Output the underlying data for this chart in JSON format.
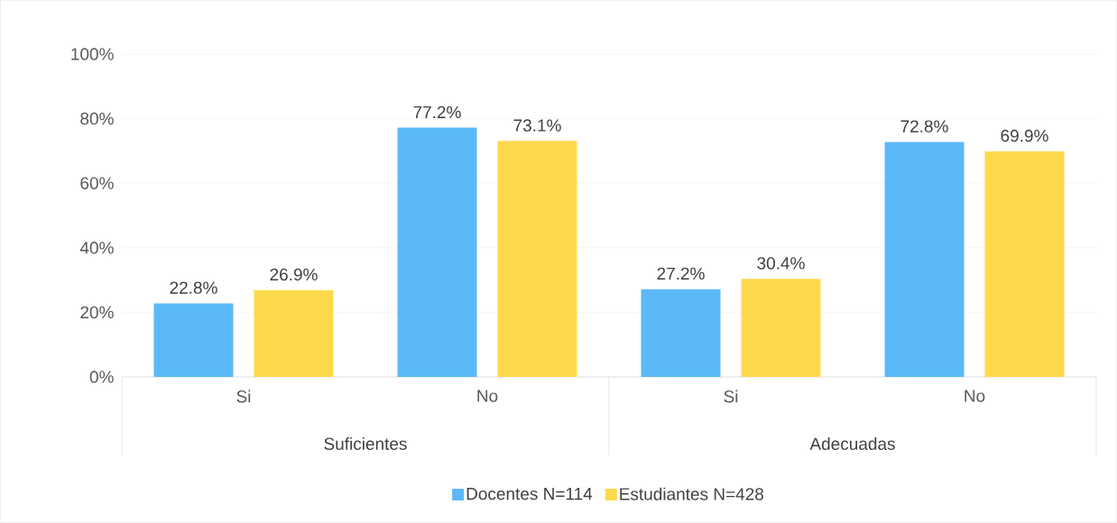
{
  "chart_data": {
    "type": "bar",
    "categories": [
      "Si",
      "No",
      "Si",
      "No"
    ],
    "annotations": [
      "Suficientes",
      "Adecuadas"
    ],
    "series": [
      {
        "name": "Docentes N=114",
        "color": "#5bb9f7",
        "values": [
          22.8,
          77.2,
          27.2,
          72.8
        ],
        "value_labels": [
          "22.8%",
          "77.2%",
          "27.2%",
          "72.8%"
        ]
      },
      {
        "name": "Estudiantes N=428",
        "color": "#fed94c",
        "values": [
          26.9,
          73.1,
          30.4,
          69.9
        ],
        "value_labels": [
          "26.9%",
          "73.1%",
          "30.4%",
          "69.9%"
        ]
      }
    ],
    "ylim": [
      0,
      100
    ],
    "yticks": [
      {
        "value": 0,
        "label": "0%"
      },
      {
        "value": 20,
        "label": "20%"
      },
      {
        "value": 40,
        "label": "40%"
      },
      {
        "value": 60,
        "label": "60%"
      },
      {
        "value": 80,
        "label": "80%"
      },
      {
        "value": 100,
        "label": "100%"
      }
    ],
    "grid": "y",
    "legend": "bottom"
  }
}
